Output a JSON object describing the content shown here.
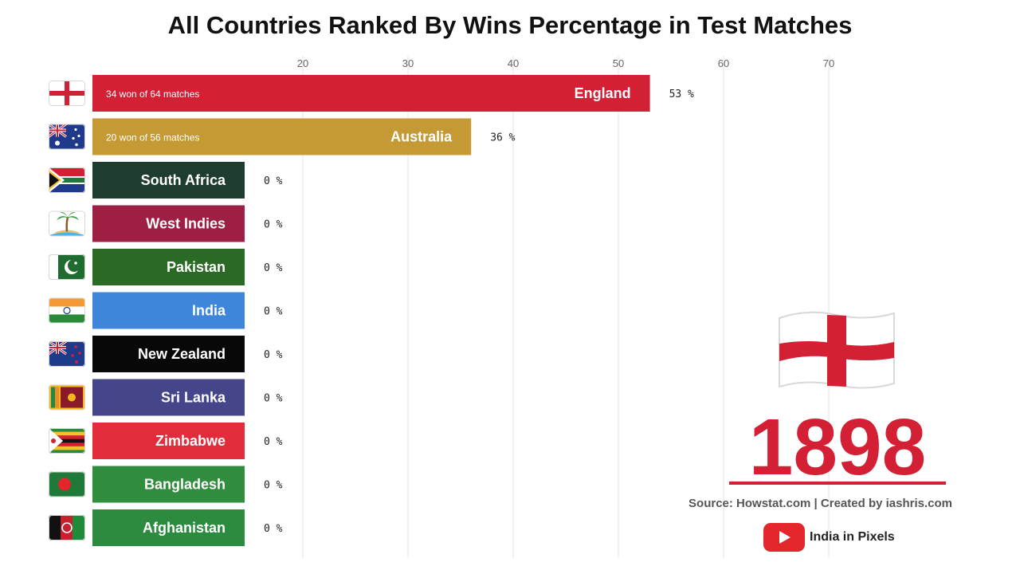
{
  "title": "All Countries Ranked By Wins Percentage in Test Matches",
  "year": "1898",
  "source": "Source: Howstat.com | Created by iashris.com",
  "brand": "India in Pixels",
  "icons": {
    "current_leader_flag": "england-flag-icon",
    "brand_logo": "youtube-play-icon"
  },
  "chart_data": {
    "type": "bar",
    "orientation": "horizontal",
    "xlim": [
      0,
      70
    ],
    "x_ticks": [
      20,
      30,
      40,
      50,
      60,
      70
    ],
    "value_suffix": " %",
    "categories": [
      "England",
      "Australia",
      "South Africa",
      "West Indies",
      "Pakistan",
      "India",
      "New Zealand",
      "Sri Lanka",
      "Zimbabwe",
      "Bangladesh",
      "Afghanistan"
    ],
    "values": [
      53,
      36,
      0,
      0,
      0,
      0,
      0,
      0,
      0,
      0,
      0
    ],
    "details": [
      "34 won of 64 matches",
      "20 won of 56 matches",
      "",
      "",
      "",
      "",
      "",
      "",
      "",
      "",
      ""
    ],
    "colors": [
      "#d42035",
      "#c59a35",
      "#1f3d2e",
      "#9e1f44",
      "#2a6a25",
      "#3f86da",
      "#080808",
      "#45468a",
      "#e22c3b",
      "#308d3e",
      "#2c8b3e"
    ],
    "flags": [
      "england-flag-icon",
      "australia-flag-icon",
      "south-africa-flag-icon",
      "west-indies-island-icon",
      "pakistan-flag-icon",
      "india-flag-icon",
      "new-zealand-flag-icon",
      "sri-lanka-flag-icon",
      "zimbabwe-flag-icon",
      "bangladesh-flag-icon",
      "afghanistan-flag-icon"
    ]
  }
}
